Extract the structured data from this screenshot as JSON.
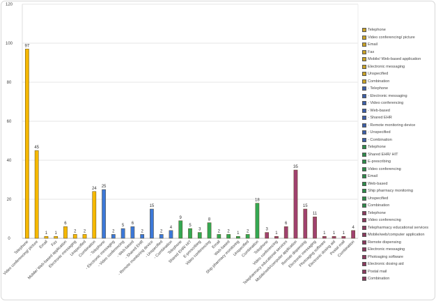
{
  "chart_data": {
    "type": "bar",
    "title": "",
    "xlabel": "",
    "ylabel": "",
    "ylim": [
      0,
      120
    ],
    "yticks": [
      0,
      20,
      40,
      60,
      80,
      100,
      120
    ],
    "grid": true,
    "legend_position": "right",
    "categories": [
      "Telephone",
      "Video conferencing/ picture",
      "Email",
      "Fax",
      "Mobile/ Web-based application",
      "Electronic messaging",
      "Unspecified",
      "Combination",
      "- Telephone",
      "- Electronic messaging",
      "- Video conferencing",
      "- Web-based",
      "- Shared EHR",
      "- Remote monitoring device",
      "- Unspecified",
      "- Combination",
      "Telephone",
      "Shared EHR/ HIT",
      "E-prescribing",
      "Video conferencing",
      "Email",
      "Web-based",
      "Ship pharmacy monitoring",
      "Unspecified",
      "Combination",
      "Telephone",
      "Video conferencing",
      "Telepharmacy educational services",
      "Mobile/web/computer application",
      "Remote dispensing",
      "Electronic messaging",
      "Photoaging software",
      "Electronic dosing aid",
      "Postal mail",
      "Combination"
    ],
    "values": [
      97,
      45,
      1,
      1,
      6,
      2,
      2,
      24,
      25,
      2,
      5,
      6,
      2,
      15,
      2,
      4,
      9,
      5,
      3,
      8,
      2,
      2,
      1,
      2,
      18,
      3,
      1,
      6,
      35,
      15,
      11,
      1,
      1,
      1,
      4
    ],
    "groups": [
      {
        "name": "yellow",
        "color": "#f5b800",
        "start": 0,
        "count": 8
      },
      {
        "name": "blue",
        "color": "#3c78d8",
        "start": 8,
        "count": 8
      },
      {
        "name": "green",
        "color": "#34a853",
        "start": 16,
        "count": 9
      },
      {
        "name": "purple",
        "color": "#a0416f",
        "start": 25,
        "count": 10
      }
    ],
    "data_labels": true
  },
  "legend": {
    "items": [
      {
        "label": "Telephone",
        "color": "#c9a227"
      },
      {
        "label": "Video conferencing/ picture",
        "color": "#c9a227"
      },
      {
        "label": "Email",
        "color": "#c9a227"
      },
      {
        "label": "Fax",
        "color": "#c9a227"
      },
      {
        "label": "Mobile/ Web-based application",
        "color": "#c9a227"
      },
      {
        "label": "Electronic messaging",
        "color": "#c9a227"
      },
      {
        "label": "Unspecified",
        "color": "#c9a227"
      },
      {
        "label": "Combination",
        "color": "#c9a227"
      },
      {
        "label": "- Telephone",
        "color": "#3c5fa8"
      },
      {
        "label": "- Electronic messaging",
        "color": "#3c5fa8"
      },
      {
        "label": "- Video conferencing",
        "color": "#3c5fa8"
      },
      {
        "label": "- Web-based",
        "color": "#3c5fa8"
      },
      {
        "label": "- Shared EHR",
        "color": "#3c5fa8"
      },
      {
        "label": "- Remote monitoring device",
        "color": "#3c5fa8"
      },
      {
        "label": "- Unspecified",
        "color": "#3c5fa8"
      },
      {
        "label": "- Combination",
        "color": "#3c5fa8"
      },
      {
        "label": "Telephone",
        "color": "#2e8b4a"
      },
      {
        "label": "Shared EHR/ HIT",
        "color": "#2e8b4a"
      },
      {
        "label": "E-prescribing",
        "color": "#2e8b4a"
      },
      {
        "label": "Video conferencing",
        "color": "#2e8b4a"
      },
      {
        "label": "Email",
        "color": "#2e8b4a"
      },
      {
        "label": "Web-based",
        "color": "#2e8b4a"
      },
      {
        "label": "Ship pharmacy monitoring",
        "color": "#2e8b4a"
      },
      {
        "label": "Unspecified",
        "color": "#2e8b4a"
      },
      {
        "label": "Combination",
        "color": "#2e8b4a"
      },
      {
        "label": "Telephone",
        "color": "#8a3a5e"
      },
      {
        "label": "Video conferencing",
        "color": "#8a3a5e"
      },
      {
        "label": "Telepharmacy educational services",
        "color": "#8a3a5e"
      },
      {
        "label": "Mobile/web/computer application",
        "color": "#8a3a5e"
      },
      {
        "label": "Remote dispensing",
        "color": "#8a3a5e"
      },
      {
        "label": "Electronic messaging",
        "color": "#8a3a5e"
      },
      {
        "label": "Photoaging software",
        "color": "#8a3a5e"
      },
      {
        "label": "Electronic dosing aid",
        "color": "#8a3a5e"
      },
      {
        "label": "Postal mail",
        "color": "#8a3a5e"
      },
      {
        "label": "Combination",
        "color": "#8a3a5e"
      }
    ]
  }
}
